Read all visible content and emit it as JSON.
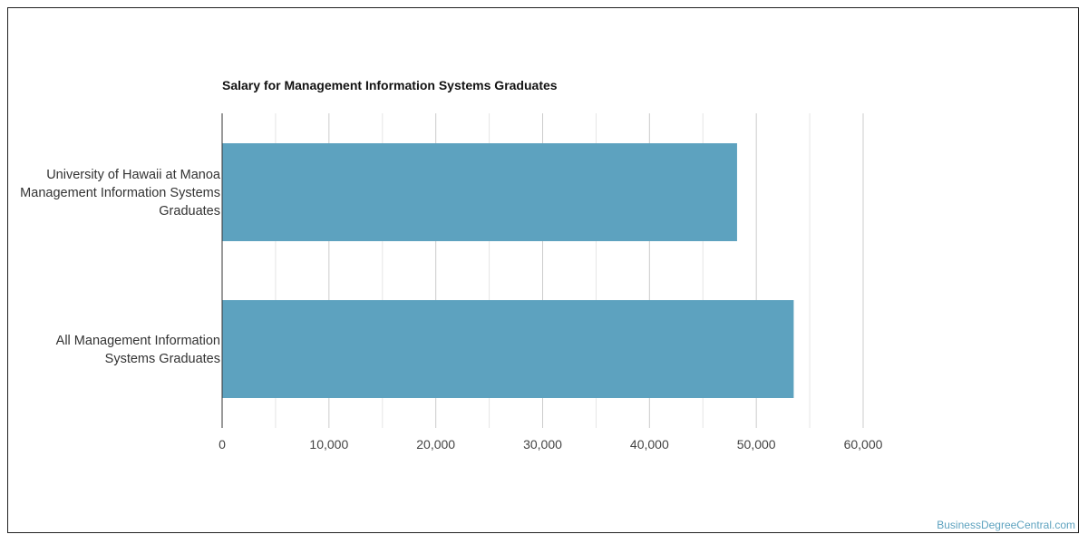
{
  "watermark": "BusinessDegreeCentral.com",
  "colors": {
    "bar": "#5da2bf",
    "grid_major": "#cccccc",
    "grid_minor": "#e6e6e6",
    "axis": "#333333"
  },
  "chart_data": {
    "type": "bar",
    "orientation": "horizontal",
    "title": "Salary for Management Information Systems Graduates",
    "xlabel": "",
    "ylabel": "",
    "categories": [
      [
        "University of Hawaii at Manoa",
        "Management Information Systems",
        "Graduates"
      ],
      [
        "All Management Information",
        "Systems Graduates"
      ]
    ],
    "values": [
      48200,
      53500
    ],
    "xlim": [
      0,
      60000
    ],
    "ticks": [
      0,
      10000,
      20000,
      30000,
      40000,
      50000,
      60000
    ],
    "tick_labels": [
      "0",
      "10,000",
      "20,000",
      "30,000",
      "40,000",
      "50,000",
      "60,000"
    ],
    "grid": true,
    "legend": "none"
  }
}
